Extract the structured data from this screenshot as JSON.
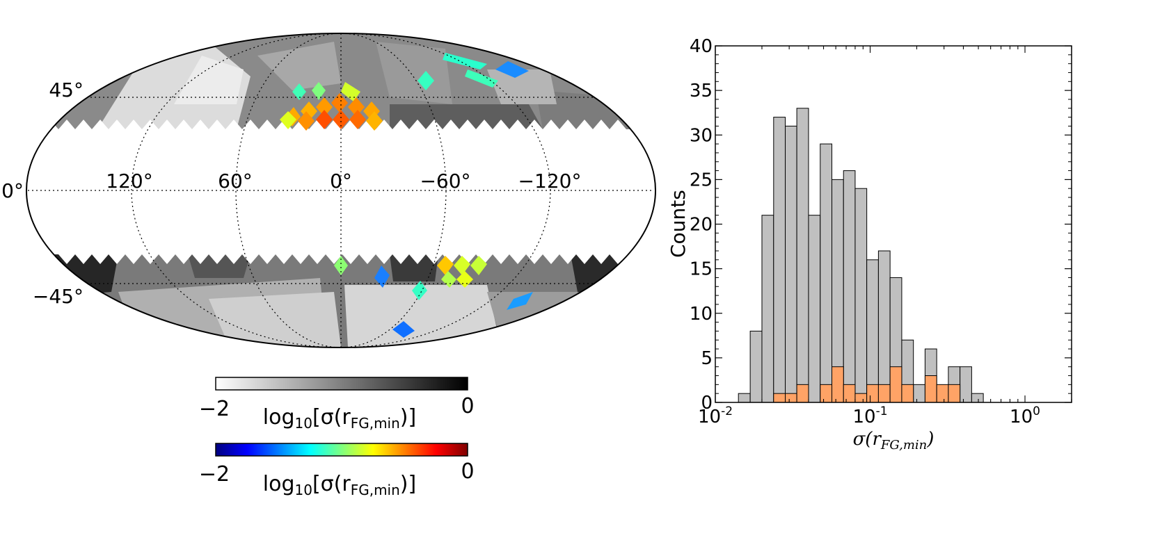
{
  "map": {
    "lat_labels": [
      "45°",
      "0°",
      "−45°"
    ],
    "lon_labels": [
      "120°",
      "60°",
      "0°",
      "−60°",
      "−120°"
    ],
    "colorbars": [
      {
        "min_label": "−2",
        "max_label": "0",
        "label_main": "log",
        "label_sub": "10",
        "label_rest": "[σ(r",
        "label_rsub": "FG,min",
        "label_end": ")]",
        "colormap": "gray_r"
      },
      {
        "min_label": "−2",
        "max_label": "0",
        "label_main": "log",
        "label_sub": "10",
        "label_rest": "[σ(r",
        "label_rsub": "FG,min",
        "label_end": ")]",
        "colormap": "jet"
      }
    ],
    "colors": {
      "gray_light": "#f2f2f2",
      "gray_dark": "#111111",
      "jet": [
        "#00007f",
        "#0000ff",
        "#007fff",
        "#00ffff",
        "#7fff7f",
        "#ffff00",
        "#ff7f00",
        "#ff0000",
        "#7f0000"
      ]
    }
  },
  "chart_data": {
    "type": "bar",
    "xscale": "log",
    "xlim": [
      0.01,
      2
    ],
    "ylim": [
      0,
      40
    ],
    "ylabel": "Counts",
    "xlabel_main": "σ(r",
    "xlabel_sub": "FG,min",
    "xlabel_end": ")",
    "x_ticks": [
      {
        "base": "10",
        "exp": "-2",
        "value": 0.01
      },
      {
        "base": "10",
        "exp": "-1",
        "value": 0.1
      },
      {
        "base": "10",
        "exp": "0",
        "value": 1
      }
    ],
    "y_ticks": [
      "0",
      "5",
      "10",
      "15",
      "20",
      "25",
      "30",
      "35",
      "40"
    ],
    "bin_edges": [
      0.0141,
      0.0168,
      0.02,
      0.0238,
      0.0283,
      0.0336,
      0.04,
      0.0476,
      0.0566,
      0.0673,
      0.08,
      0.0951,
      0.1131,
      0.1345,
      0.16,
      0.1903,
      0.2263,
      0.2691,
      0.32,
      0.3805,
      0.4525,
      0.5382,
      0.64,
      0.7611,
      0.905
    ],
    "series": [
      {
        "values": [
          1,
          8,
          21,
          32,
          31,
          33,
          21,
          29,
          25,
          26,
          24,
          16,
          17,
          14,
          7,
          2,
          6,
          1,
          4,
          4,
          1,
          0,
          0,
          0
        ],
        "color": "#c0c0c0"
      },
      {
        "values": [
          0,
          0,
          0,
          1,
          1,
          2,
          0,
          2,
          4,
          2,
          1,
          2,
          2,
          4,
          2,
          0,
          3,
          2,
          2,
          0,
          0,
          0,
          0,
          0
        ],
        "color": "#ffa366"
      }
    ]
  }
}
